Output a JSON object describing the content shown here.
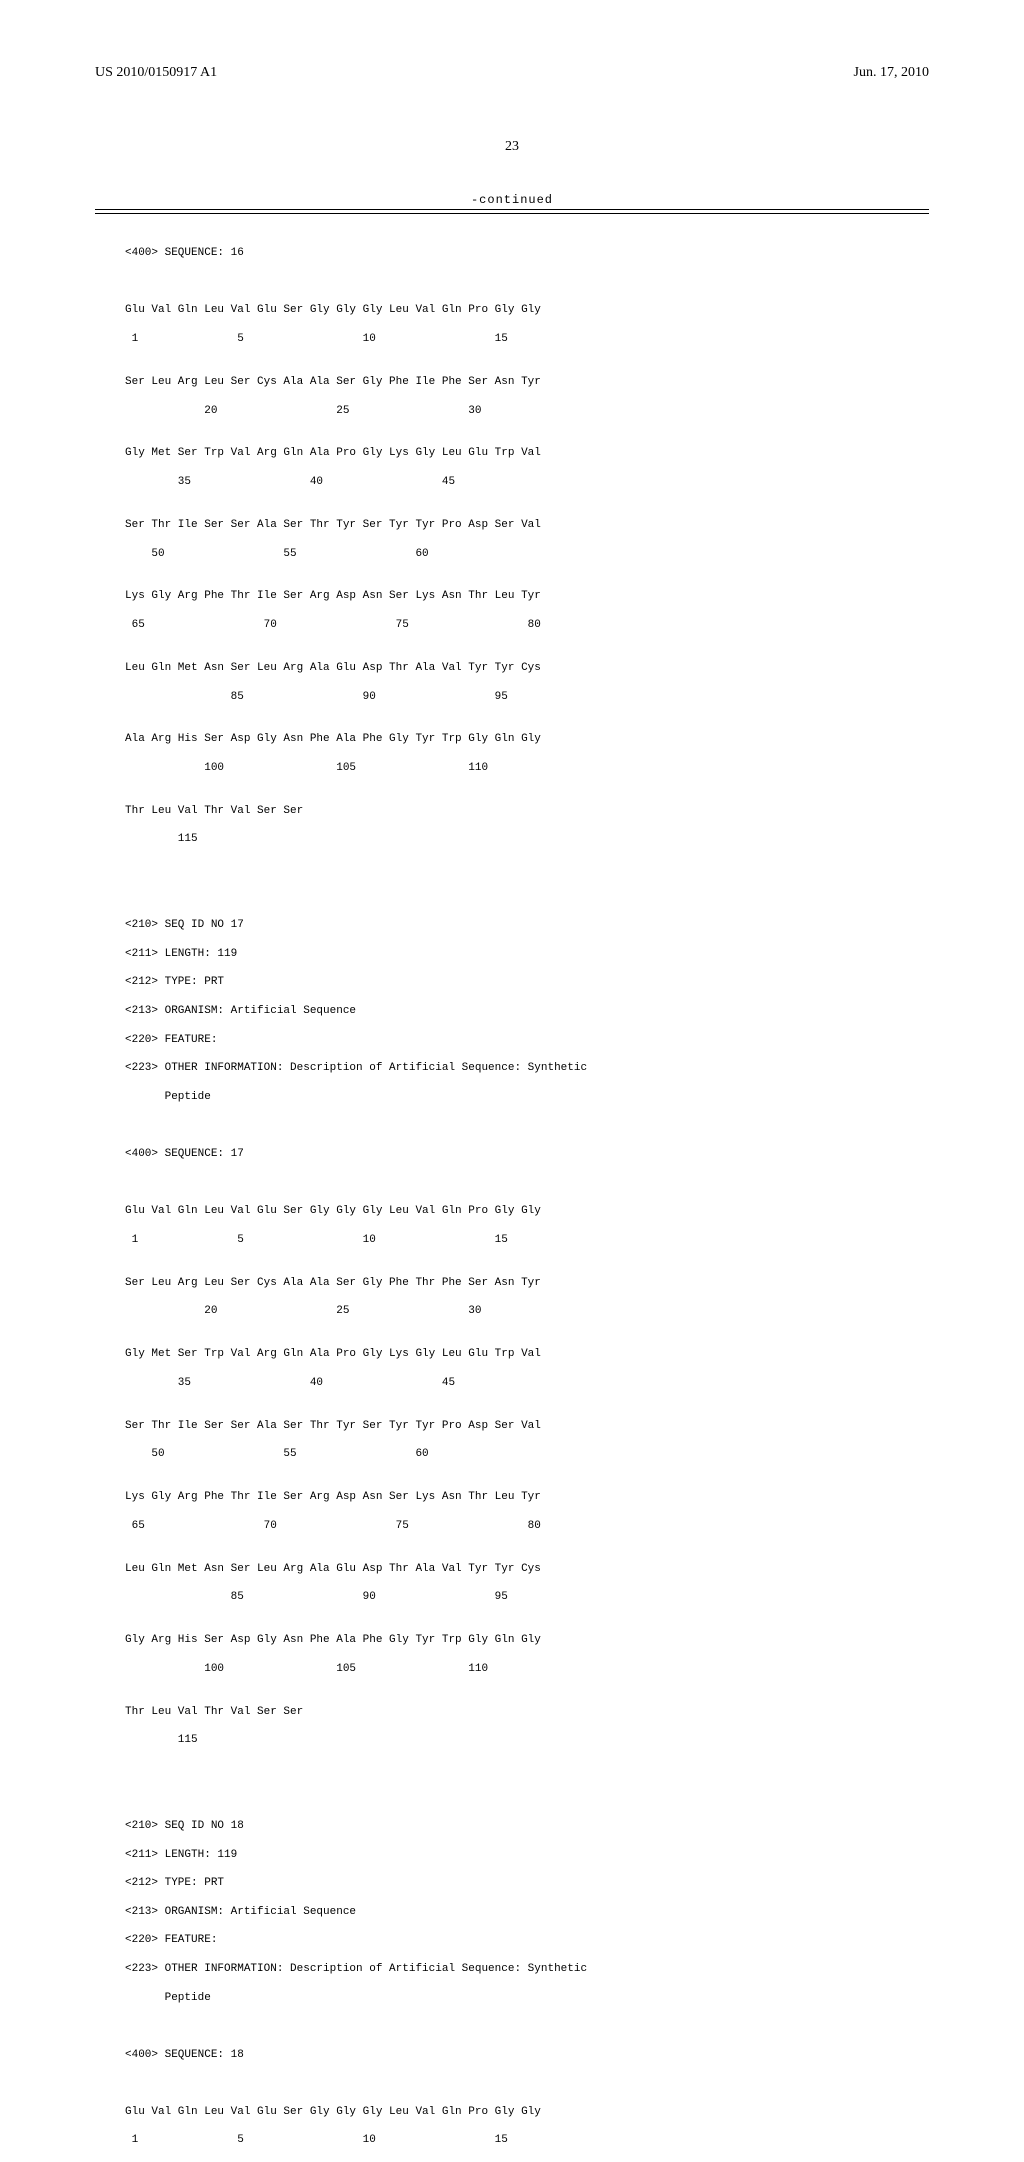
{
  "header": {
    "left": "US 2010/0150917 A1",
    "right": "Jun. 17, 2010"
  },
  "page_number": "23",
  "continued": "-continued",
  "seq16": {
    "header": "<400> SEQUENCE: 16",
    "rows": [
      "Glu Val Gln Leu Val Glu Ser Gly Gly Gly Leu Val Gln Pro Gly Gly",
      " 1               5                  10                  15",
      "",
      "Ser Leu Arg Leu Ser Cys Ala Ala Ser Gly Phe Ile Phe Ser Asn Tyr",
      "            20                  25                  30",
      "",
      "Gly Met Ser Trp Val Arg Gln Ala Pro Gly Lys Gly Leu Glu Trp Val",
      "        35                  40                  45",
      "",
      "Ser Thr Ile Ser Ser Ala Ser Thr Tyr Ser Tyr Tyr Pro Asp Ser Val",
      "    50                  55                  60",
      "",
      "Lys Gly Arg Phe Thr Ile Ser Arg Asp Asn Ser Lys Asn Thr Leu Tyr",
      " 65                  70                  75                  80",
      "",
      "Leu Gln Met Asn Ser Leu Arg Ala Glu Asp Thr Ala Val Tyr Tyr Cys",
      "                85                  90                  95",
      "",
      "Ala Arg His Ser Asp Gly Asn Phe Ala Phe Gly Tyr Trp Gly Gln Gly",
      "            100                 105                 110",
      "",
      "Thr Leu Val Thr Val Ser Ser",
      "        115"
    ]
  },
  "seq17": {
    "meta": [
      "<210> SEQ ID NO 17",
      "<211> LENGTH: 119",
      "<212> TYPE: PRT",
      "<213> ORGANISM: Artificial Sequence",
      "<220> FEATURE:",
      "<223> OTHER INFORMATION: Description of Artificial Sequence: Synthetic",
      "      Peptide"
    ],
    "header": "<400> SEQUENCE: 17",
    "rows": [
      "Glu Val Gln Leu Val Glu Ser Gly Gly Gly Leu Val Gln Pro Gly Gly",
      " 1               5                  10                  15",
      "",
      "Ser Leu Arg Leu Ser Cys Ala Ala Ser Gly Phe Thr Phe Ser Asn Tyr",
      "            20                  25                  30",
      "",
      "Gly Met Ser Trp Val Arg Gln Ala Pro Gly Lys Gly Leu Glu Trp Val",
      "        35                  40                  45",
      "",
      "Ser Thr Ile Ser Ser Ala Ser Thr Tyr Ser Tyr Tyr Pro Asp Ser Val",
      "    50                  55                  60",
      "",
      "Lys Gly Arg Phe Thr Ile Ser Arg Asp Asn Ser Lys Asn Thr Leu Tyr",
      " 65                  70                  75                  80",
      "",
      "Leu Gln Met Asn Ser Leu Arg Ala Glu Asp Thr Ala Val Tyr Tyr Cys",
      "                85                  90                  95",
      "",
      "Gly Arg His Ser Asp Gly Asn Phe Ala Phe Gly Tyr Trp Gly Gln Gly",
      "            100                 105                 110",
      "",
      "Thr Leu Val Thr Val Ser Ser",
      "        115"
    ]
  },
  "seq18": {
    "meta": [
      "<210> SEQ ID NO 18",
      "<211> LENGTH: 119",
      "<212> TYPE: PRT",
      "<213> ORGANISM: Artificial Sequence",
      "<220> FEATURE:",
      "<223> OTHER INFORMATION: Description of Artificial Sequence: Synthetic",
      "      Peptide"
    ],
    "header": "<400> SEQUENCE: 18",
    "rows": [
      "Glu Val Gln Leu Val Glu Ser Gly Gly Gly Leu Val Gln Pro Gly Gly",
      " 1               5                  10                  15"
    ]
  }
}
